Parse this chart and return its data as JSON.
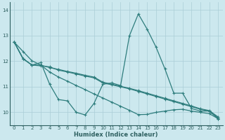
{
  "title": "",
  "xlabel": "Humidex (Indice chaleur)",
  "ylabel": "",
  "bg_color": "#cce8ee",
  "grid_color": "#aacdd6",
  "line_color": "#2e7d7d",
  "xlim": [
    -0.5,
    23.5
  ],
  "ylim": [
    9.5,
    14.3
  ],
  "yticks": [
    10,
    11,
    12,
    13,
    14
  ],
  "xticks": [
    0,
    1,
    2,
    3,
    4,
    5,
    6,
    7,
    8,
    9,
    10,
    11,
    12,
    13,
    14,
    15,
    16,
    17,
    18,
    19,
    20,
    21,
    22,
    23
  ],
  "series": [
    {
      "x": [
        0,
        1,
        2,
        3,
        4,
        5,
        6,
        7,
        8,
        9,
        10,
        11,
        12,
        13,
        14,
        15,
        16,
        17,
        18,
        19,
        20,
        21,
        22,
        23
      ],
      "y": [
        12.75,
        12.1,
        11.85,
        11.95,
        11.1,
        10.5,
        10.45,
        10.0,
        9.9,
        10.35,
        11.1,
        11.15,
        11.05,
        13.0,
        13.85,
        13.25,
        12.55,
        11.7,
        10.75,
        10.75,
        10.15,
        10.05,
        10.05,
        9.75
      ]
    },
    {
      "x": [
        0,
        1,
        2,
        3,
        4,
        5,
        6,
        7,
        8,
        9,
        10,
        11,
        12,
        13,
        14,
        15,
        16,
        17,
        18,
        19,
        20,
        21,
        22,
        23
      ],
      "y": [
        12.75,
        12.1,
        11.85,
        11.82,
        11.78,
        11.65,
        11.58,
        11.5,
        11.42,
        11.35,
        11.15,
        11.08,
        11.0,
        10.92,
        10.82,
        10.72,
        10.62,
        10.52,
        10.42,
        10.32,
        10.22,
        10.12,
        10.05,
        9.78
      ]
    },
    {
      "x": [
        0,
        1,
        2,
        3,
        4,
        5,
        6,
        7,
        8,
        9,
        10,
        11,
        12,
        13,
        14,
        15,
        16,
        17,
        18,
        19,
        20,
        21,
        22,
        23
      ],
      "y": [
        12.75,
        12.1,
        11.85,
        11.85,
        11.75,
        11.68,
        11.6,
        11.53,
        11.45,
        11.38,
        11.18,
        11.1,
        11.02,
        10.94,
        10.85,
        10.75,
        10.65,
        10.55,
        10.45,
        10.35,
        10.25,
        10.14,
        10.07,
        9.82
      ]
    },
    {
      "x": [
        0,
        1,
        2,
        3,
        4,
        5,
        6,
        7,
        8,
        9,
        10,
        11,
        12,
        13,
        14,
        15,
        16,
        17,
        18,
        19,
        20,
        21,
        22,
        23
      ],
      "y": [
        12.75,
        12.38,
        12.02,
        11.85,
        11.58,
        11.38,
        11.22,
        11.05,
        10.89,
        10.72,
        10.56,
        10.4,
        10.24,
        10.08,
        9.91,
        9.92,
        10.0,
        10.05,
        10.1,
        10.12,
        10.05,
        10.0,
        9.95,
        9.75
      ]
    }
  ]
}
